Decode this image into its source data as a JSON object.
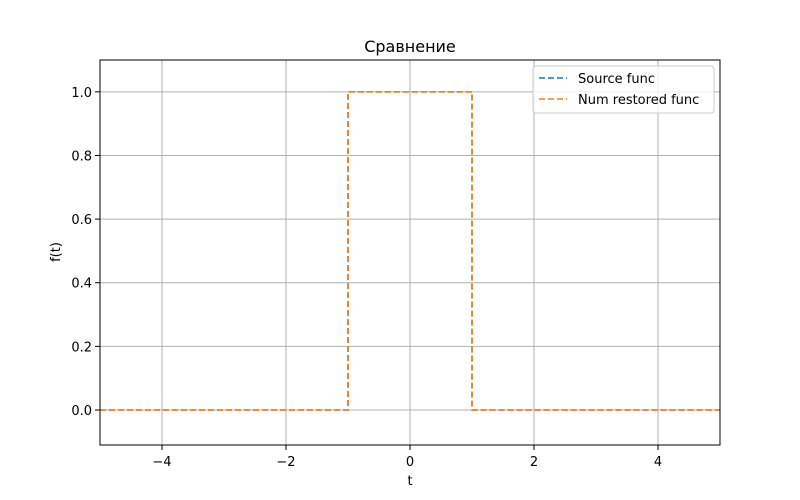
{
  "chart_data": {
    "type": "line",
    "title": "Сравнение",
    "xlabel": "t",
    "ylabel": "f(t)",
    "xlim": [
      -5,
      5
    ],
    "ylim": [
      -0.11,
      1.1
    ],
    "x_ticks": [
      -4,
      -2,
      0,
      2,
      4
    ],
    "x_tick_labels": [
      "−4",
      "−2",
      "0",
      "2",
      "4"
    ],
    "y_ticks": [
      0.0,
      0.2,
      0.4,
      0.6,
      0.8,
      1.0
    ],
    "y_tick_labels": [
      "0.0",
      "0.2",
      "0.4",
      "0.6",
      "0.8",
      "1.0"
    ],
    "grid": true,
    "legend_position": "top-right",
    "series": [
      {
        "name": "Source func",
        "color": "#1f77b4",
        "line_style": "dashed",
        "x": [
          -5,
          -1,
          -1,
          1,
          1,
          5
        ],
        "y": [
          0,
          0,
          1,
          1,
          0,
          0
        ]
      },
      {
        "name": "Num restored func",
        "color": "#ff7f0e",
        "line_style": "dashed",
        "x": [
          -5,
          -1,
          -1,
          1,
          1,
          5
        ],
        "y": [
          0,
          0,
          1,
          1,
          0,
          0
        ]
      }
    ]
  }
}
